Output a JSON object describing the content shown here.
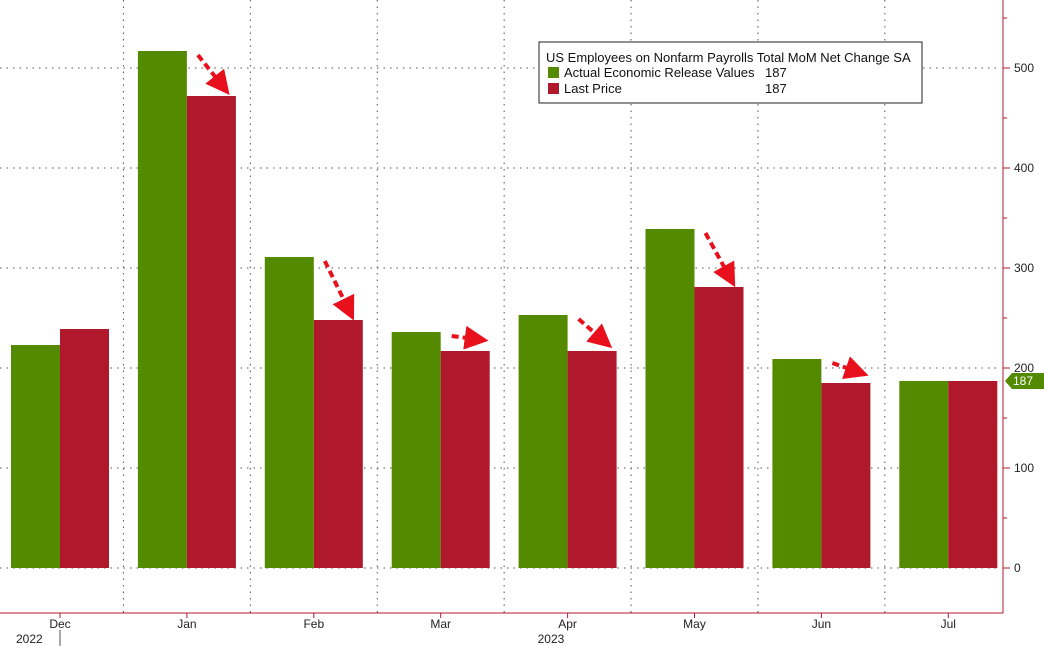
{
  "chart_data": {
    "type": "bar",
    "title": "US Employees on Nonfarm Payrolls Total MoM Net Change SA",
    "categories": [
      "Dec",
      "Jan",
      "Feb",
      "Mar",
      "Apr",
      "May",
      "Jun",
      "Jul"
    ],
    "year_labels": [
      {
        "label": "2022",
        "category_index": 0
      },
      {
        "label": "2023",
        "category_index": 4
      }
    ],
    "series": [
      {
        "name": "Actual Economic Release Values",
        "legend_value": "187",
        "color": "#548a00",
        "values": [
          223,
          517,
          311,
          236,
          253,
          339,
          209,
          187
        ]
      },
      {
        "name": "Last Price",
        "legend_value": "187",
        "color": "#b0192c",
        "values": [
          239,
          472,
          248,
          217,
          217,
          281,
          185,
          187
        ]
      }
    ],
    "revision_arrows": [
      1,
      2,
      3,
      4,
      5,
      6
    ],
    "arrow_color": "#e8101c",
    "y_axis": {
      "position": "right",
      "ticks": [
        0,
        100,
        200,
        300,
        400,
        500
      ],
      "ylim": [
        -45,
        568
      ],
      "grid": true,
      "axis_color": "#b0192c"
    },
    "last_value_label": {
      "text": "187",
      "value": 187,
      "color": "#548a00"
    },
    "legend": {
      "placement": "top-right"
    }
  }
}
